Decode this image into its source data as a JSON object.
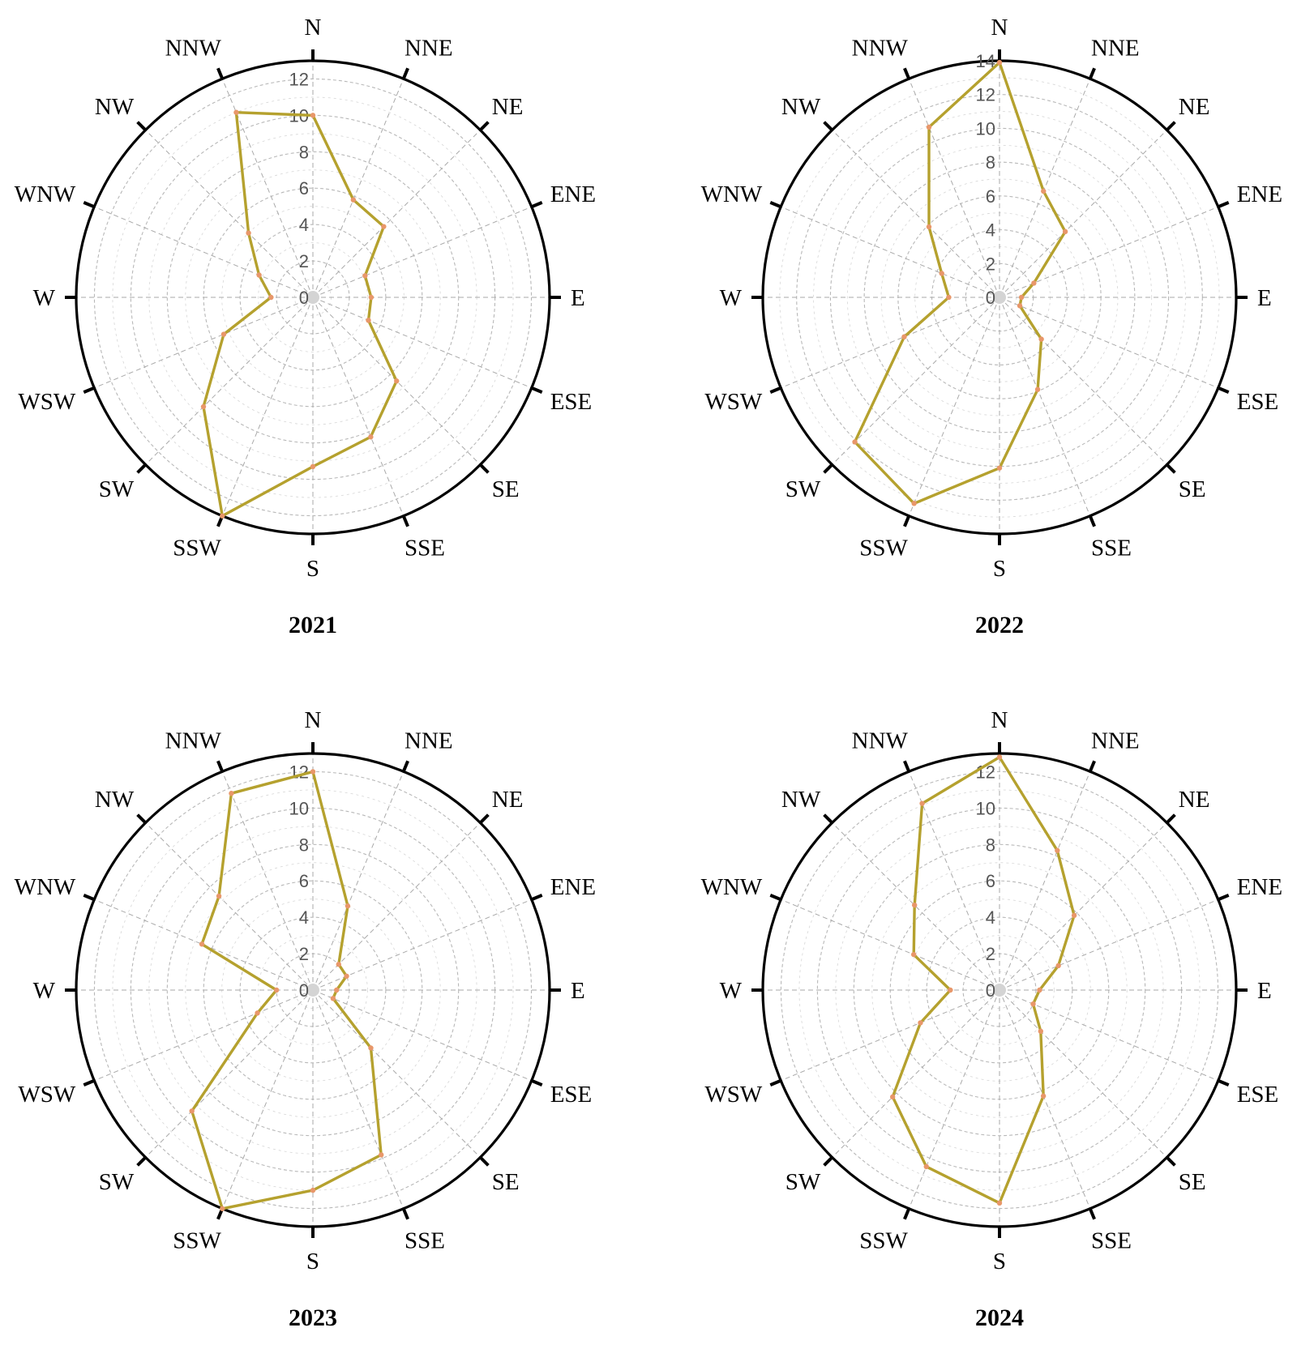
{
  "chart_data": [
    {
      "type": "radar",
      "title": "2021",
      "directions": [
        "N",
        "NNE",
        "NE",
        "ENE",
        "E",
        "ESE",
        "SE",
        "SSE",
        "S",
        "SSW",
        "SW",
        "WSW",
        "W",
        "WNW",
        "NW",
        "NNW"
      ],
      "rmax": 13,
      "ticks": [
        0,
        2,
        4,
        6,
        8,
        10,
        12
      ],
      "grid": true,
      "line_color": "#b5a12e",
      "marker_color": "#e8976a",
      "values": [
        10,
        5.8,
        5.5,
        3.1,
        3.2,
        3.3,
        6.5,
        8.3,
        9.3,
        13.0,
        8.5,
        5.3,
        2.3,
        3.2,
        5.0,
        11.0
      ]
    },
    {
      "type": "radar",
      "title": "2022",
      "directions": [
        "N",
        "NNE",
        "NE",
        "ENE",
        "E",
        "ESE",
        "SE",
        "SSE",
        "S",
        "SSW",
        "SW",
        "WSW",
        "W",
        "WNW",
        "NW",
        "NNW"
      ],
      "rmax": 14,
      "ticks": [
        0,
        2,
        4,
        6,
        8,
        10,
        12,
        14
      ],
      "grid": true,
      "line_color": "#b5a12e",
      "marker_color": "#e8976a",
      "values": [
        13.9,
        6.8,
        5.5,
        2.2,
        1.3,
        1.3,
        3.5,
        5.9,
        10.1,
        13.2,
        12.1,
        6.1,
        3.0,
        3.7,
        5.9,
        10.9
      ]
    },
    {
      "type": "radar",
      "title": "2023",
      "directions": [
        "N",
        "NNE",
        "NE",
        "ENE",
        "E",
        "ESE",
        "SE",
        "SSE",
        "S",
        "SSW",
        "SW",
        "WSW",
        "W",
        "WNW",
        "NW",
        "NNW"
      ],
      "rmax": 13,
      "ticks": [
        0,
        2,
        4,
        6,
        8,
        10,
        12
      ],
      "grid": true,
      "line_color": "#b5a12e",
      "marker_color": "#e8976a",
      "values": [
        12.0,
        5.0,
        2.0,
        2.0,
        1.3,
        1.2,
        4.5,
        9.8,
        11.0,
        13.0,
        9.4,
        3.3,
        2.0,
        6.6,
        7.3,
        11.7
      ]
    },
    {
      "type": "radar",
      "title": "2024",
      "directions": [
        "N",
        "NNE",
        "NE",
        "ENE",
        "E",
        "ESE",
        "SE",
        "SSE",
        "S",
        "SSW",
        "SW",
        "WSW",
        "W",
        "WNW",
        "NW",
        "NNW"
      ],
      "rmax": 13,
      "ticks": [
        0,
        2,
        4,
        6,
        8,
        10,
        12
      ],
      "grid": true,
      "line_color": "#b5a12e",
      "marker_color": "#e8976a",
      "values": [
        12.8,
        8.3,
        5.8,
        3.5,
        2.2,
        2.0,
        3.2,
        6.3,
        11.7,
        10.5,
        8.3,
        4.7,
        2.7,
        5.1,
        6.6,
        11.1
      ]
    }
  ]
}
